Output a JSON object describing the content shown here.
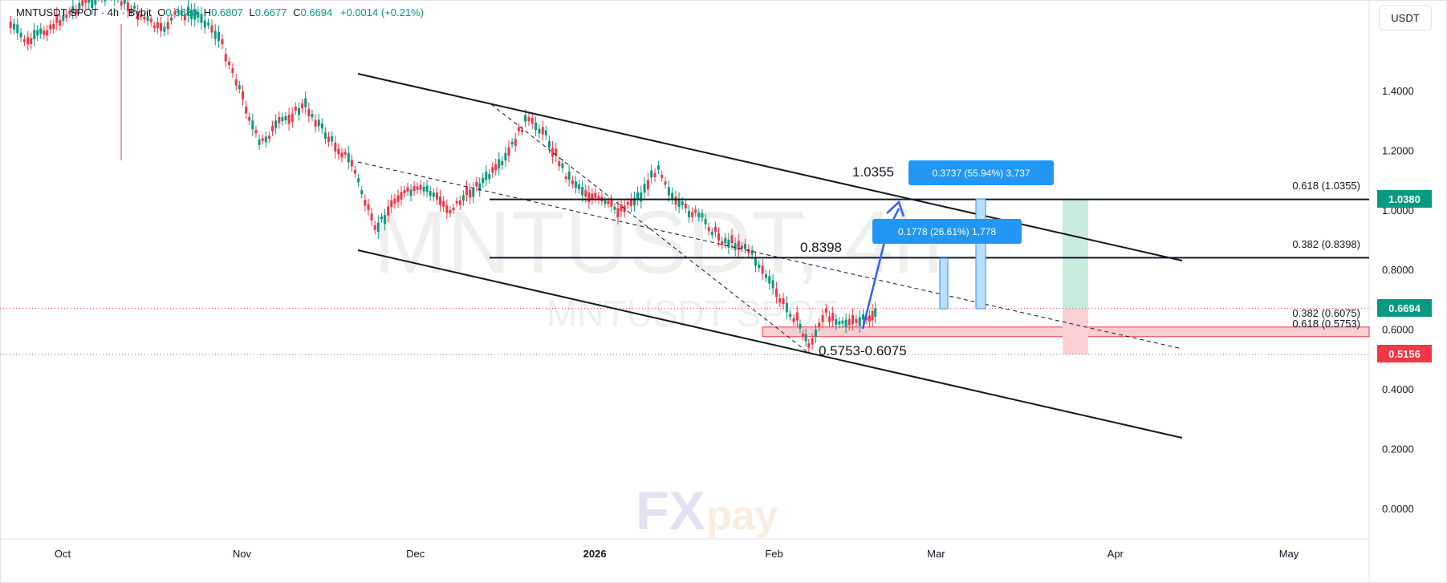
{
  "header": {
    "symbol": "MNTUSDT SPOT · 4h · Bybit",
    "o_label": "O",
    "o_value": "0.6680",
    "h_label": "H",
    "h_value": "0.6807",
    "l_label": "L",
    "l_value": "0.6677",
    "c_label": "C",
    "c_value": "0.6694",
    "change": "+0.0014 (+0.21%)"
  },
  "currency_button": "USDT",
  "watermark": {
    "big": "MNTUSDT, 4h",
    "small": "MNTUSDT SPOT",
    "logo_fx": "FX",
    "logo_pay": "pay"
  },
  "price_tags": {
    "target": "1.0380",
    "current": "0.6694",
    "stop": "0.5156"
  },
  "annotations": {
    "level_1": "1.0355",
    "level_2": "0.8398",
    "zone": "0.5753-0.6075",
    "measure_1": "0.3737 (55.94%) 3,737",
    "measure_2": "0.1778 (26.61%) 1,778"
  },
  "fib_labels": [
    "0.618 (1.0355)",
    "0.382 (0.8398)",
    "0.382 (0.6075)",
    "0.618 (0.5753)"
  ],
  "colors": {
    "up": "#089981",
    "down": "#f23645",
    "measure": "#2196f3",
    "target_zone": "#c8ebe0",
    "stop_zone": "#fbd1d5",
    "support_zone": "#f7c6c9"
  },
  "chart_data": {
    "type": "line",
    "title": "MNTUSDT SPOT · 4h · Bybit",
    "xlabel": "",
    "ylabel": "",
    "ylim": [
      -0.05,
      1.65
    ],
    "y_ticks": [
      "1.4000",
      "1.2000",
      "1.0000",
      "0.8000",
      "0.6000",
      "0.4000",
      "0.2000",
      "0.0000"
    ],
    "y_tick_values": [
      1.4,
      1.2,
      1.0,
      0.8,
      0.6,
      0.4,
      0.2,
      0.0
    ],
    "x_ticks": [
      "Oct",
      "Nov",
      "Dec",
      "2026",
      "Feb",
      "Mar",
      "Apr",
      "May"
    ],
    "x_tick_dates": [
      "2025-10-01",
      "2025-11-01",
      "2025-12-01",
      "2026-01-01",
      "2026-02-01",
      "2026-03-01",
      "2026-04-01",
      "2026-05-01"
    ],
    "x_range": [
      "2025-09-22",
      "2026-05-15"
    ],
    "series": [
      {
        "values": [
          {
            "x": "2025-09-22",
            "y": 1.62
          },
          {
            "x": "2025-09-25",
            "y": 1.56
          },
          {
            "x": "2025-09-30",
            "y": 1.63
          },
          {
            "x": "2025-10-05",
            "y": 1.7
          },
          {
            "x": "2025-10-10",
            "y": 1.72
          },
          {
            "x": "2025-10-14",
            "y": 1.66
          },
          {
            "x": "2025-10-18",
            "y": 1.6
          },
          {
            "x": "2025-10-21",
            "y": 1.66
          },
          {
            "x": "2025-10-25",
            "y": 1.65
          },
          {
            "x": "2025-10-28",
            "y": 1.58
          },
          {
            "x": "2025-10-31",
            "y": 1.44
          },
          {
            "x": "2025-11-04",
            "y": 1.22
          },
          {
            "x": "2025-11-08",
            "y": 1.3
          },
          {
            "x": "2025-11-12",
            "y": 1.35
          },
          {
            "x": "2025-11-16",
            "y": 1.24
          },
          {
            "x": "2025-11-20",
            "y": 1.16
          },
          {
            "x": "2025-11-24",
            "y": 0.93
          },
          {
            "x": "2025-11-28",
            "y": 1.05
          },
          {
            "x": "2025-12-03",
            "y": 1.07
          },
          {
            "x": "2025-12-07",
            "y": 1.0
          },
          {
            "x": "2025-12-11",
            "y": 1.07
          },
          {
            "x": "2025-12-16",
            "y": 1.15
          },
          {
            "x": "2025-12-20",
            "y": 1.3
          },
          {
            "x": "2025-12-23",
            "y": 1.27
          },
          {
            "x": "2025-12-27",
            "y": 1.12
          },
          {
            "x": "2025-12-31",
            "y": 1.05
          },
          {
            "x": "2026-01-05",
            "y": 1.0
          },
          {
            "x": "2026-01-09",
            "y": 1.05
          },
          {
            "x": "2026-01-12",
            "y": 1.15
          },
          {
            "x": "2026-01-15",
            "y": 1.02
          },
          {
            "x": "2026-01-19",
            "y": 0.98
          },
          {
            "x": "2026-01-23",
            "y": 0.9
          },
          {
            "x": "2026-01-27",
            "y": 0.88
          },
          {
            "x": "2026-01-30",
            "y": 0.8
          },
          {
            "x": "2026-02-02",
            "y": 0.7
          },
          {
            "x": "2026-02-05",
            "y": 0.63
          },
          {
            "x": "2026-02-07",
            "y": 0.545
          },
          {
            "x": "2026-02-10",
            "y": 0.65
          },
          {
            "x": "2026-02-14",
            "y": 0.62
          },
          {
            "x": "2026-02-17",
            "y": 0.63
          },
          {
            "x": "2026-02-19",
            "y": 0.6694
          }
        ]
      }
    ],
    "drawings": {
      "horizontal_levels": [
        1.0355,
        0.8398
      ],
      "support_zone": [
        0.5753,
        0.6075
      ],
      "current_price": 0.6694,
      "stop_price": 0.5156,
      "target_price": 1.038
    }
  }
}
